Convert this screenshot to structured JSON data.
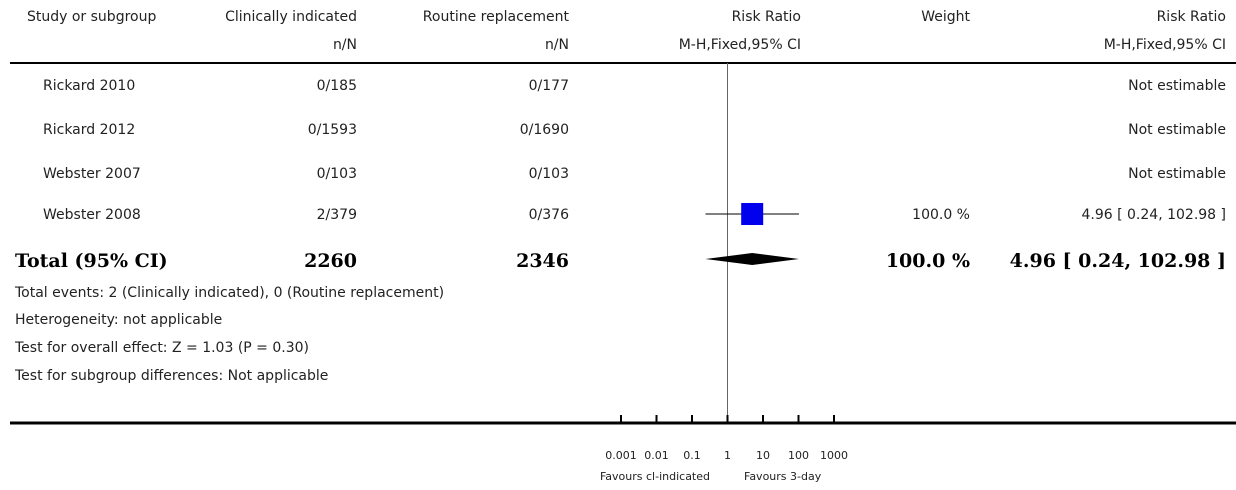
{
  "header": {
    "study_label": "Study or subgroup",
    "group1_label": "Clinically indicated",
    "group1_sub": "n/N",
    "group2_label": "Routine replacement",
    "group2_sub": "n/N",
    "plot_label": "Risk Ratio",
    "plot_sub": "M-H,Fixed,95% CI",
    "weight_label": "Weight",
    "ratio_label": "Risk Ratio",
    "ratio_sub": "M-H,Fixed,95% CI"
  },
  "studies": [
    {
      "name": "Rickard 2010",
      "g1": "0/185",
      "g2": "0/177",
      "weight": "",
      "ci_text": "Not estimable"
    },
    {
      "name": "Rickard 2012",
      "g1": "0/1593",
      "g2": "0/1690",
      "weight": "",
      "ci_text": "Not estimable"
    },
    {
      "name": "Webster 2007",
      "g1": "0/103",
      "g2": "0/103",
      "weight": "",
      "ci_text": "Not estimable"
    },
    {
      "name": "Webster 2008",
      "g1": "2/379",
      "g2": "0/376",
      "weight": "100.0 %",
      "ci_text": "4.96 [ 0.24, 102.98 ]"
    }
  ],
  "total": {
    "label": "Total (95% CI)",
    "g1": "2260",
    "g2": "2346",
    "weight": "100.0 %",
    "ci_text": "4.96 [ 0.24, 102.98 ]"
  },
  "footnotes": [
    "Total events: 2 (Clinically indicated), 0 (Routine replacement)",
    "Heterogeneity: not applicable",
    "Test for overall effect: Z = 1.03 (P = 0.30)",
    "Test for subgroup differences: Not applicable"
  ],
  "axis": {
    "tick_labels": [
      "0.001",
      "0.01",
      "0.1",
      "1",
      "10",
      "100",
      "1000"
    ],
    "favours_left": "Favours cl-indicated",
    "favours_right": "Favours 3-day"
  },
  "colors": {
    "marker": "#0000ee",
    "diamond": "#000000",
    "line": "#000000",
    "refline": "#666666"
  },
  "chart_data": {
    "type": "forest",
    "scale": "log",
    "xlim": [
      0.001,
      1000
    ],
    "xticks": [
      0.001,
      0.01,
      0.1,
      1,
      10,
      100,
      1000
    ],
    "studies": [
      {
        "name": "Rickard 2010",
        "estimate": null,
        "ci_low": null,
        "ci_high": null
      },
      {
        "name": "Rickard 2012",
        "estimate": null,
        "ci_low": null,
        "ci_high": null
      },
      {
        "name": "Webster 2007",
        "estimate": null,
        "ci_low": null,
        "ci_high": null
      },
      {
        "name": "Webster 2008",
        "estimate": 4.96,
        "ci_low": 0.24,
        "ci_high": 102.98,
        "weight": 100.0
      }
    ],
    "pooled": {
      "estimate": 4.96,
      "ci_low": 0.24,
      "ci_high": 102.98
    }
  }
}
